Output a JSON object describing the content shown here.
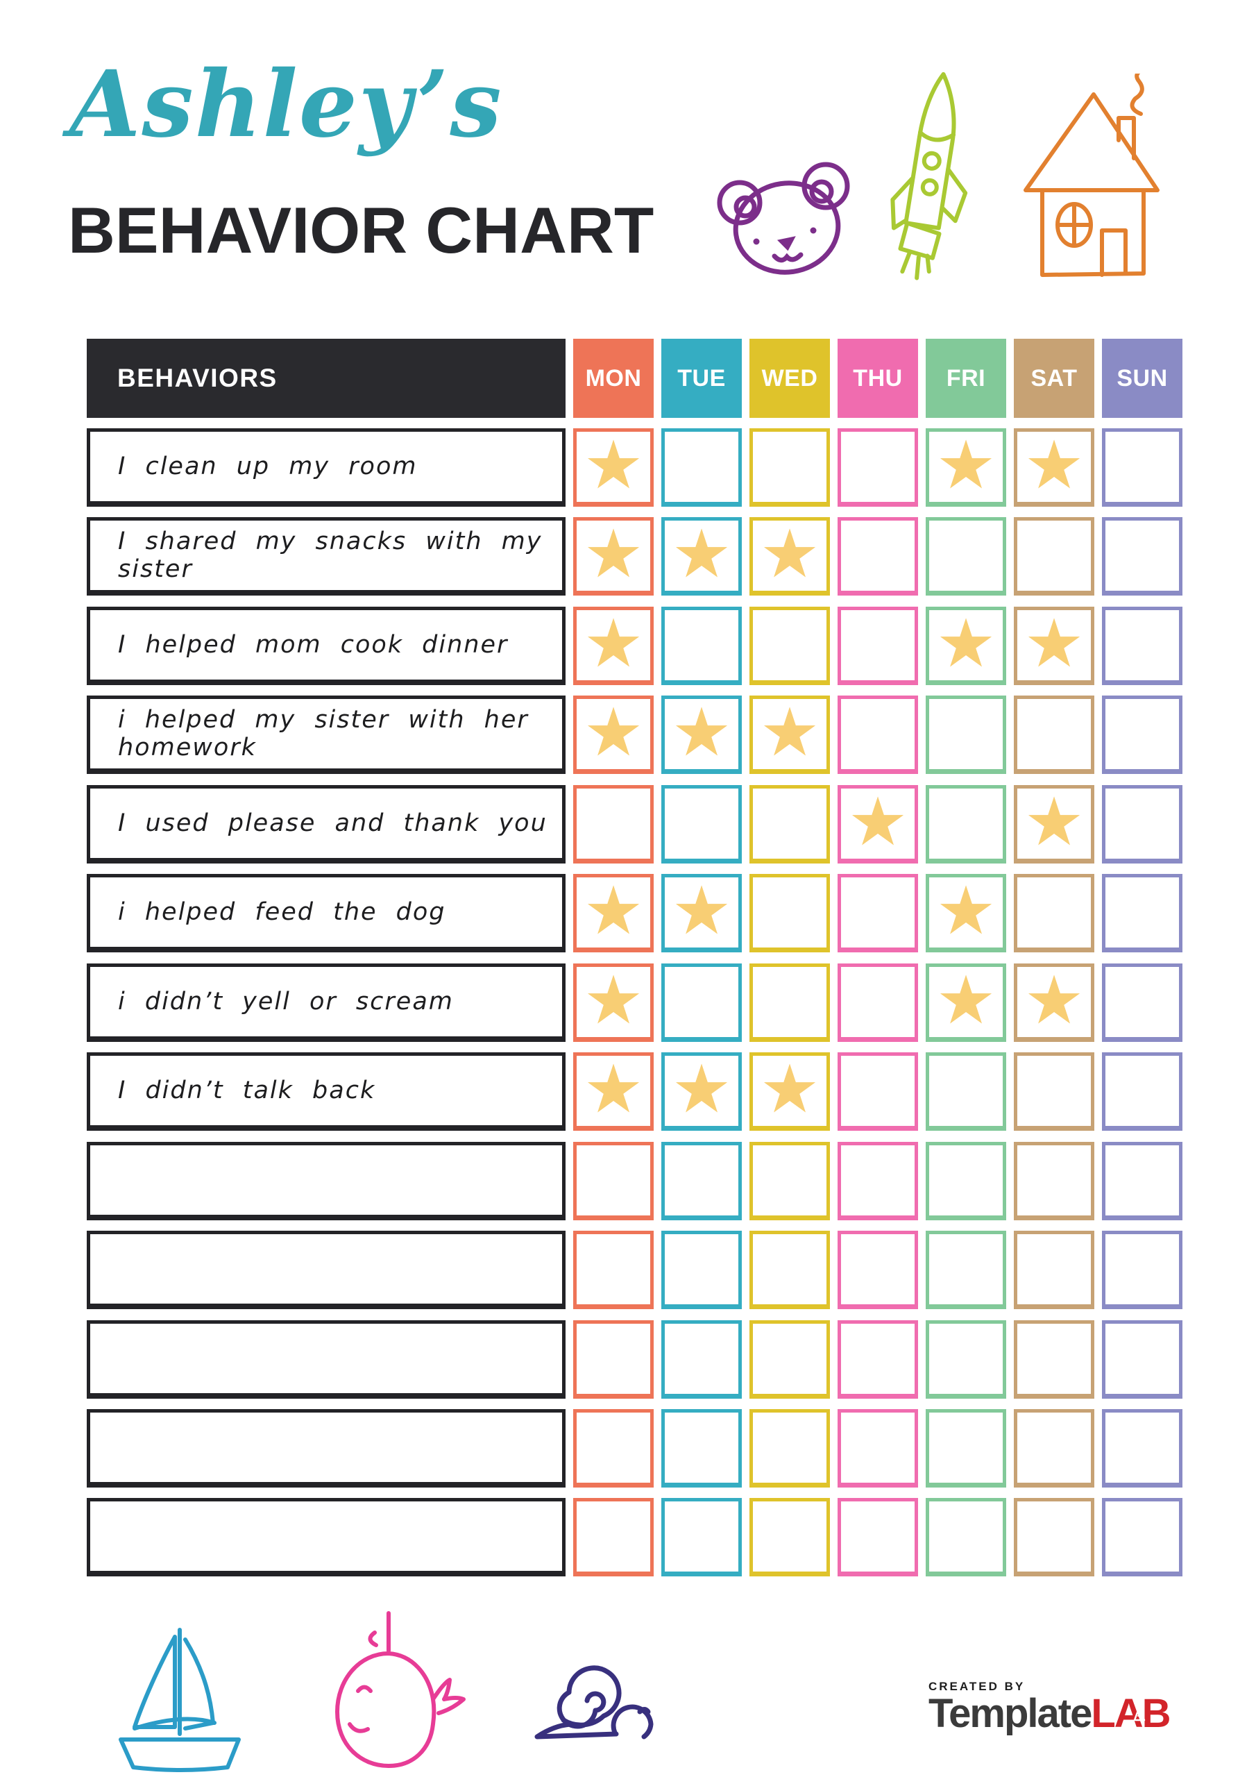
{
  "header": {
    "name": "Ashley’s",
    "name_color": "#34a6b6",
    "title": "BEHAVIOR CHART"
  },
  "table": {
    "behaviors_header": "BEHAVIORS",
    "days": [
      {
        "label": "MON",
        "color": "#ee7457"
      },
      {
        "label": "TUE",
        "color": "#35adc2"
      },
      {
        "label": "WED",
        "color": "#dfc32b"
      },
      {
        "label": "THU",
        "color": "#f06caf"
      },
      {
        "label": "FRI",
        "color": "#82c999"
      },
      {
        "label": "SAT",
        "color": "#c7a274"
      },
      {
        "label": "SUN",
        "color": "#8a8bc5"
      }
    ],
    "star_color": "#f8ce74",
    "star_glyph": "★",
    "rows": [
      {
        "behavior": "I clean up my room",
        "stars": [
          "MON",
          "FRI",
          "SAT"
        ]
      },
      {
        "behavior": "I shared my snacks with my sister",
        "stars": [
          "MON",
          "TUE",
          "WED"
        ]
      },
      {
        "behavior": "I helped mom cook dinner",
        "stars": [
          "MON",
          "FRI",
          "SAT"
        ]
      },
      {
        "behavior": "i helped my sister with her homework",
        "stars": [
          "MON",
          "TUE",
          "WED"
        ]
      },
      {
        "behavior": "I used please and thank you",
        "stars": [
          "THU",
          "SAT"
        ]
      },
      {
        "behavior": "i helped feed the dog",
        "stars": [
          "MON",
          "TUE",
          "FRI"
        ]
      },
      {
        "behavior": "i didn’t yell or scream",
        "stars": [
          "MON",
          "FRI",
          "SAT"
        ]
      },
      {
        "behavior": "I didn’t talk back",
        "stars": [
          "MON",
          "TUE",
          "WED"
        ]
      },
      {
        "behavior": "",
        "stars": []
      },
      {
        "behavior": "",
        "stars": []
      },
      {
        "behavior": "",
        "stars": []
      },
      {
        "behavior": "",
        "stars": []
      },
      {
        "behavior": "",
        "stars": []
      }
    ]
  },
  "doodles": {
    "bear": "#7c2e8a",
    "rocket": "#a9c933",
    "house": "#e2802f",
    "sailboat": "#2b9cc8",
    "whale": "#e73c96",
    "snail": "#38307e"
  },
  "footer": {
    "created_by": "CREATED BY",
    "brand_dark": "Template",
    "brand_red": "LAB"
  }
}
